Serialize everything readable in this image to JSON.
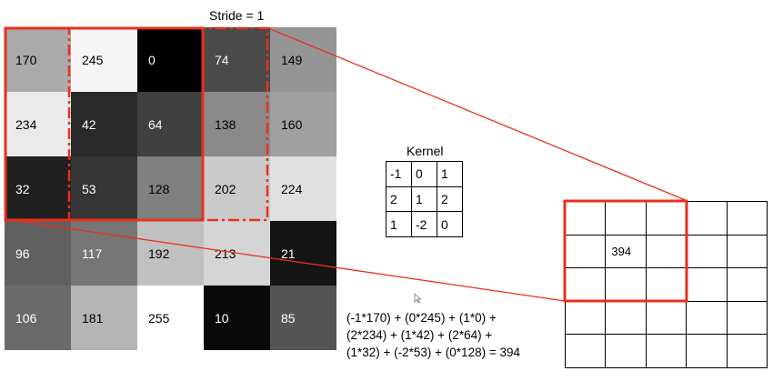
{
  "stride_label": "Stride = 1",
  "kernel_title": "Kernel",
  "input_matrix": [
    [
      170,
      245,
      0,
      74,
      149
    ],
    [
      234,
      42,
      64,
      138,
      160
    ],
    [
      32,
      53,
      128,
      202,
      224
    ],
    [
      96,
      117,
      192,
      213,
      21
    ],
    [
      106,
      181,
      255,
      10,
      85
    ]
  ],
  "kernel": [
    [
      "-1",
      "0",
      "1"
    ],
    [
      "2",
      "1",
      "2"
    ],
    [
      "1",
      "-2",
      "0"
    ]
  ],
  "output_matrix": [
    [
      "",
      "",
      "",
      "",
      ""
    ],
    [
      "",
      "394",
      "",
      "",
      ""
    ],
    [
      "",
      "",
      "",
      "",
      ""
    ],
    [
      "",
      "",
      "",
      "",
      ""
    ],
    [
      "",
      "",
      "",
      "",
      ""
    ]
  ],
  "formula_lines": [
    "(-1*170) + (0*245) + (1*0) +",
    "(2*234) + (1*42) + (2*64) +",
    "(1*32) + (-2*53) + (0*128) = 394"
  ],
  "colors": {
    "highlight": "#e8301e",
    "grid_line": "#000000"
  }
}
